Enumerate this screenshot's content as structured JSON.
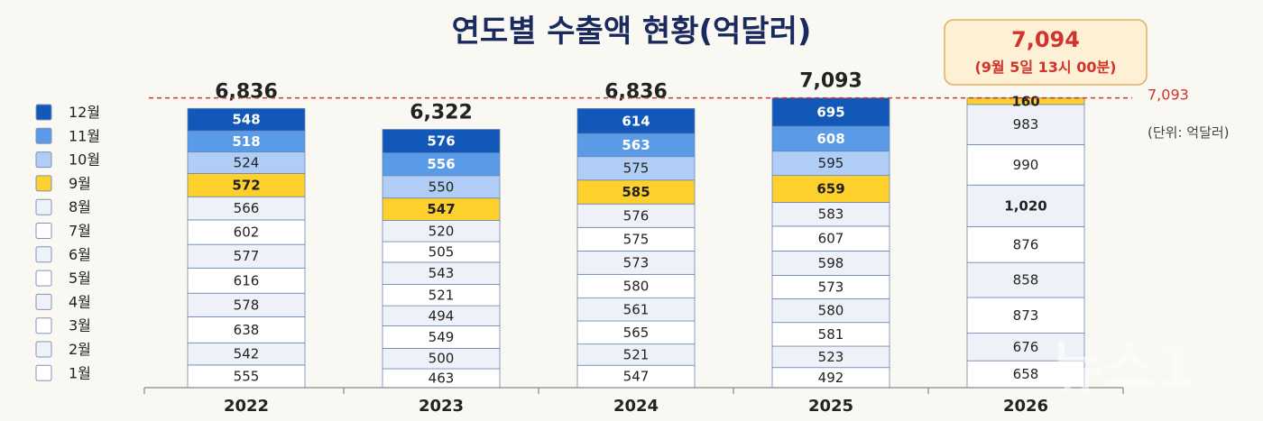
{
  "chart_data": {
    "type": "bar",
    "stacked": true,
    "title": "연도별 수출액 현황(억달러)",
    "unit": "(단위: 억달러)",
    "categories": [
      "2022",
      "2023",
      "2024",
      "2025",
      "2026"
    ],
    "totals": [
      "6,836",
      "6,322",
      "6,836",
      "7,093",
      ""
    ],
    "series": [
      {
        "name": "1월",
        "values": [
          555,
          463,
          547,
          492,
          658
        ],
        "labels": [
          "555",
          "463",
          "547",
          "492",
          "658"
        ],
        "color": "#ffffff"
      },
      {
        "name": "2월",
        "values": [
          542,
          500,
          521,
          523,
          676
        ],
        "labels": [
          "542",
          "500",
          "521",
          "523",
          "676"
        ],
        "color": "#eef2f8"
      },
      {
        "name": "3월",
        "values": [
          638,
          549,
          565,
          581,
          873
        ],
        "labels": [
          "638",
          "549",
          "565",
          "581",
          "873"
        ],
        "color": "#ffffff"
      },
      {
        "name": "4월",
        "values": [
          578,
          494,
          561,
          580,
          858
        ],
        "labels": [
          "578",
          "494",
          "561",
          "580",
          "858"
        ],
        "color": "#eef2f8"
      },
      {
        "name": "5월",
        "values": [
          616,
          521,
          580,
          573,
          876
        ],
        "labels": [
          "616",
          "521",
          "580",
          "573",
          "876"
        ],
        "color": "#ffffff"
      },
      {
        "name": "6월",
        "values": [
          577,
          543,
          573,
          598,
          1020
        ],
        "labels": [
          "577",
          "543",
          "573",
          "598",
          "1,020"
        ],
        "color": "#eef2f8"
      },
      {
        "name": "7월",
        "values": [
          602,
          505,
          575,
          607,
          990
        ],
        "labels": [
          "602",
          "505",
          "575",
          "607",
          "990"
        ],
        "color": "#ffffff"
      },
      {
        "name": "8월",
        "values": [
          566,
          520,
          576,
          583,
          983
        ],
        "labels": [
          "566",
          "520",
          "576",
          "583",
          "983"
        ],
        "color": "#eef2f8"
      },
      {
        "name": "9월",
        "values": [
          572,
          547,
          585,
          659,
          160
        ],
        "labels": [
          "572",
          "547",
          "585",
          "659",
          "160"
        ],
        "color": "#fdd02b"
      },
      {
        "name": "10월",
        "values": [
          524,
          550,
          575,
          595,
          null
        ],
        "labels": [
          "524",
          "550",
          "575",
          "595",
          "-"
        ],
        "color": "#b0cdf6"
      },
      {
        "name": "11월",
        "values": [
          518,
          556,
          563,
          608,
          null
        ],
        "labels": [
          "518",
          "556",
          "563",
          "608",
          "-"
        ],
        "color": "#5a9be8"
      },
      {
        "name": "12월",
        "values": [
          548,
          576,
          614,
          695,
          null
        ],
        "labels": [
          "548",
          "576",
          "614",
          "695",
          "-"
        ],
        "color": "#1158b8"
      }
    ],
    "reference_line": {
      "value": 7093,
      "label": "7,093",
      "color": "#d0342c",
      "style": "dashed"
    },
    "callout": {
      "value": "7,094",
      "note": "(9월 5일 13시 00분)",
      "background": "#fdf0d4",
      "border": "#e0b060"
    },
    "legend_position": "left",
    "grid": false,
    "ylim": [
      0,
      7500
    ]
  },
  "watermark": "뉴스1"
}
